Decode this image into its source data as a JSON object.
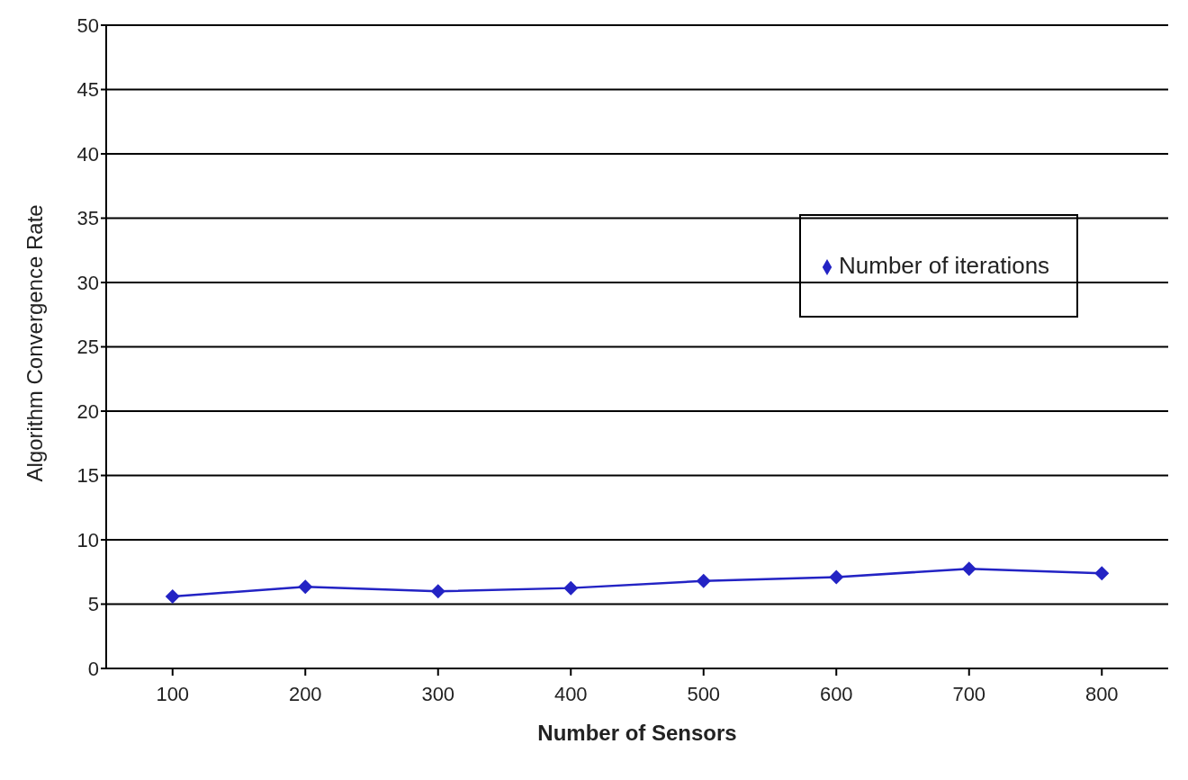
{
  "chart_data": {
    "type": "line",
    "xlabel": "Number of Sensors",
    "ylabel": "Algorithm Convergence Rate",
    "categories": [
      "100",
      "200",
      "300",
      "400",
      "500",
      "600",
      "700",
      "800"
    ],
    "series": [
      {
        "name": "Number of iterations",
        "color": "#2323c4",
        "values": [
          5.6,
          6.35,
          6.0,
          6.25,
          6.8,
          7.1,
          7.75,
          7.4
        ]
      }
    ],
    "ylim": [
      0,
      50
    ],
    "yticks": [
      0,
      5,
      10,
      15,
      20,
      25,
      30,
      35,
      40,
      45,
      50
    ],
    "grid": "y",
    "legend": "right",
    "marker": "diamond",
    "line_style": "solid"
  }
}
